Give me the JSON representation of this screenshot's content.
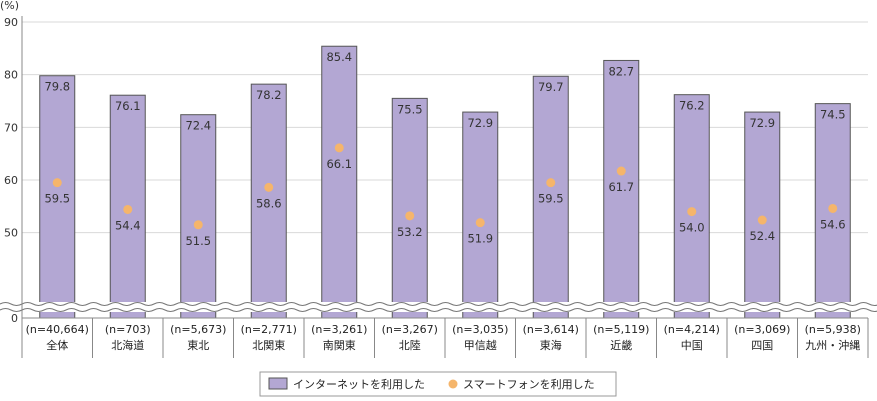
{
  "chart_data": {
    "type": "bar",
    "unit_label": "(%)",
    "y_ticks": [
      0,
      50,
      60,
      70,
      80,
      90
    ],
    "ylim_upper": [
      45,
      90
    ],
    "axis_break": true,
    "categories": [
      {
        "n": "(n=40,664)",
        "name": "全体"
      },
      {
        "n": "(n=703)",
        "name": "北海道"
      },
      {
        "n": "(n=5,673)",
        "name": "東北"
      },
      {
        "n": "(n=2,771)",
        "name": "北関東"
      },
      {
        "n": "(n=3,261)",
        "name": "南関東"
      },
      {
        "n": "(n=3,267)",
        "name": "北陸"
      },
      {
        "n": "(n=3,035)",
        "name": "甲信越"
      },
      {
        "n": "(n=3,614)",
        "name": "東海"
      },
      {
        "n": "(n=5,119)",
        "name": "近畿"
      },
      {
        "n": "(n=4,214)",
        "name": "中国"
      },
      {
        "n": "(n=3,069)",
        "name": "四国"
      },
      {
        "n": "(n=5,938)",
        "name": "九州・沖縄"
      }
    ],
    "series": [
      {
        "name": "インターネットを利用した",
        "mark": "bar",
        "color": "#b3a7d3",
        "stroke": "#555555",
        "values": [
          79.8,
          76.1,
          72.4,
          78.2,
          85.4,
          75.5,
          72.9,
          79.7,
          82.7,
          76.2,
          72.9,
          74.5
        ],
        "labels": [
          "79.8",
          "76.1",
          "72.4",
          "78.2",
          "85.4",
          "75.5",
          "72.9",
          "79.7",
          "82.7",
          "76.2",
          "72.9",
          "74.5"
        ]
      },
      {
        "name": "スマートフォンを利用した",
        "mark": "dot",
        "color": "#f5b56b",
        "values": [
          59.5,
          54.4,
          51.5,
          58.6,
          66.1,
          53.2,
          51.9,
          59.5,
          61.7,
          54.0,
          52.4,
          54.6
        ],
        "labels": [
          "59.5",
          "54.4",
          "51.5",
          "58.6",
          "66.1",
          "53.2",
          "51.9",
          "59.5",
          "61.7",
          "54.0",
          "52.4",
          "54.6"
        ]
      }
    ],
    "legend_position": "bottom-center"
  }
}
